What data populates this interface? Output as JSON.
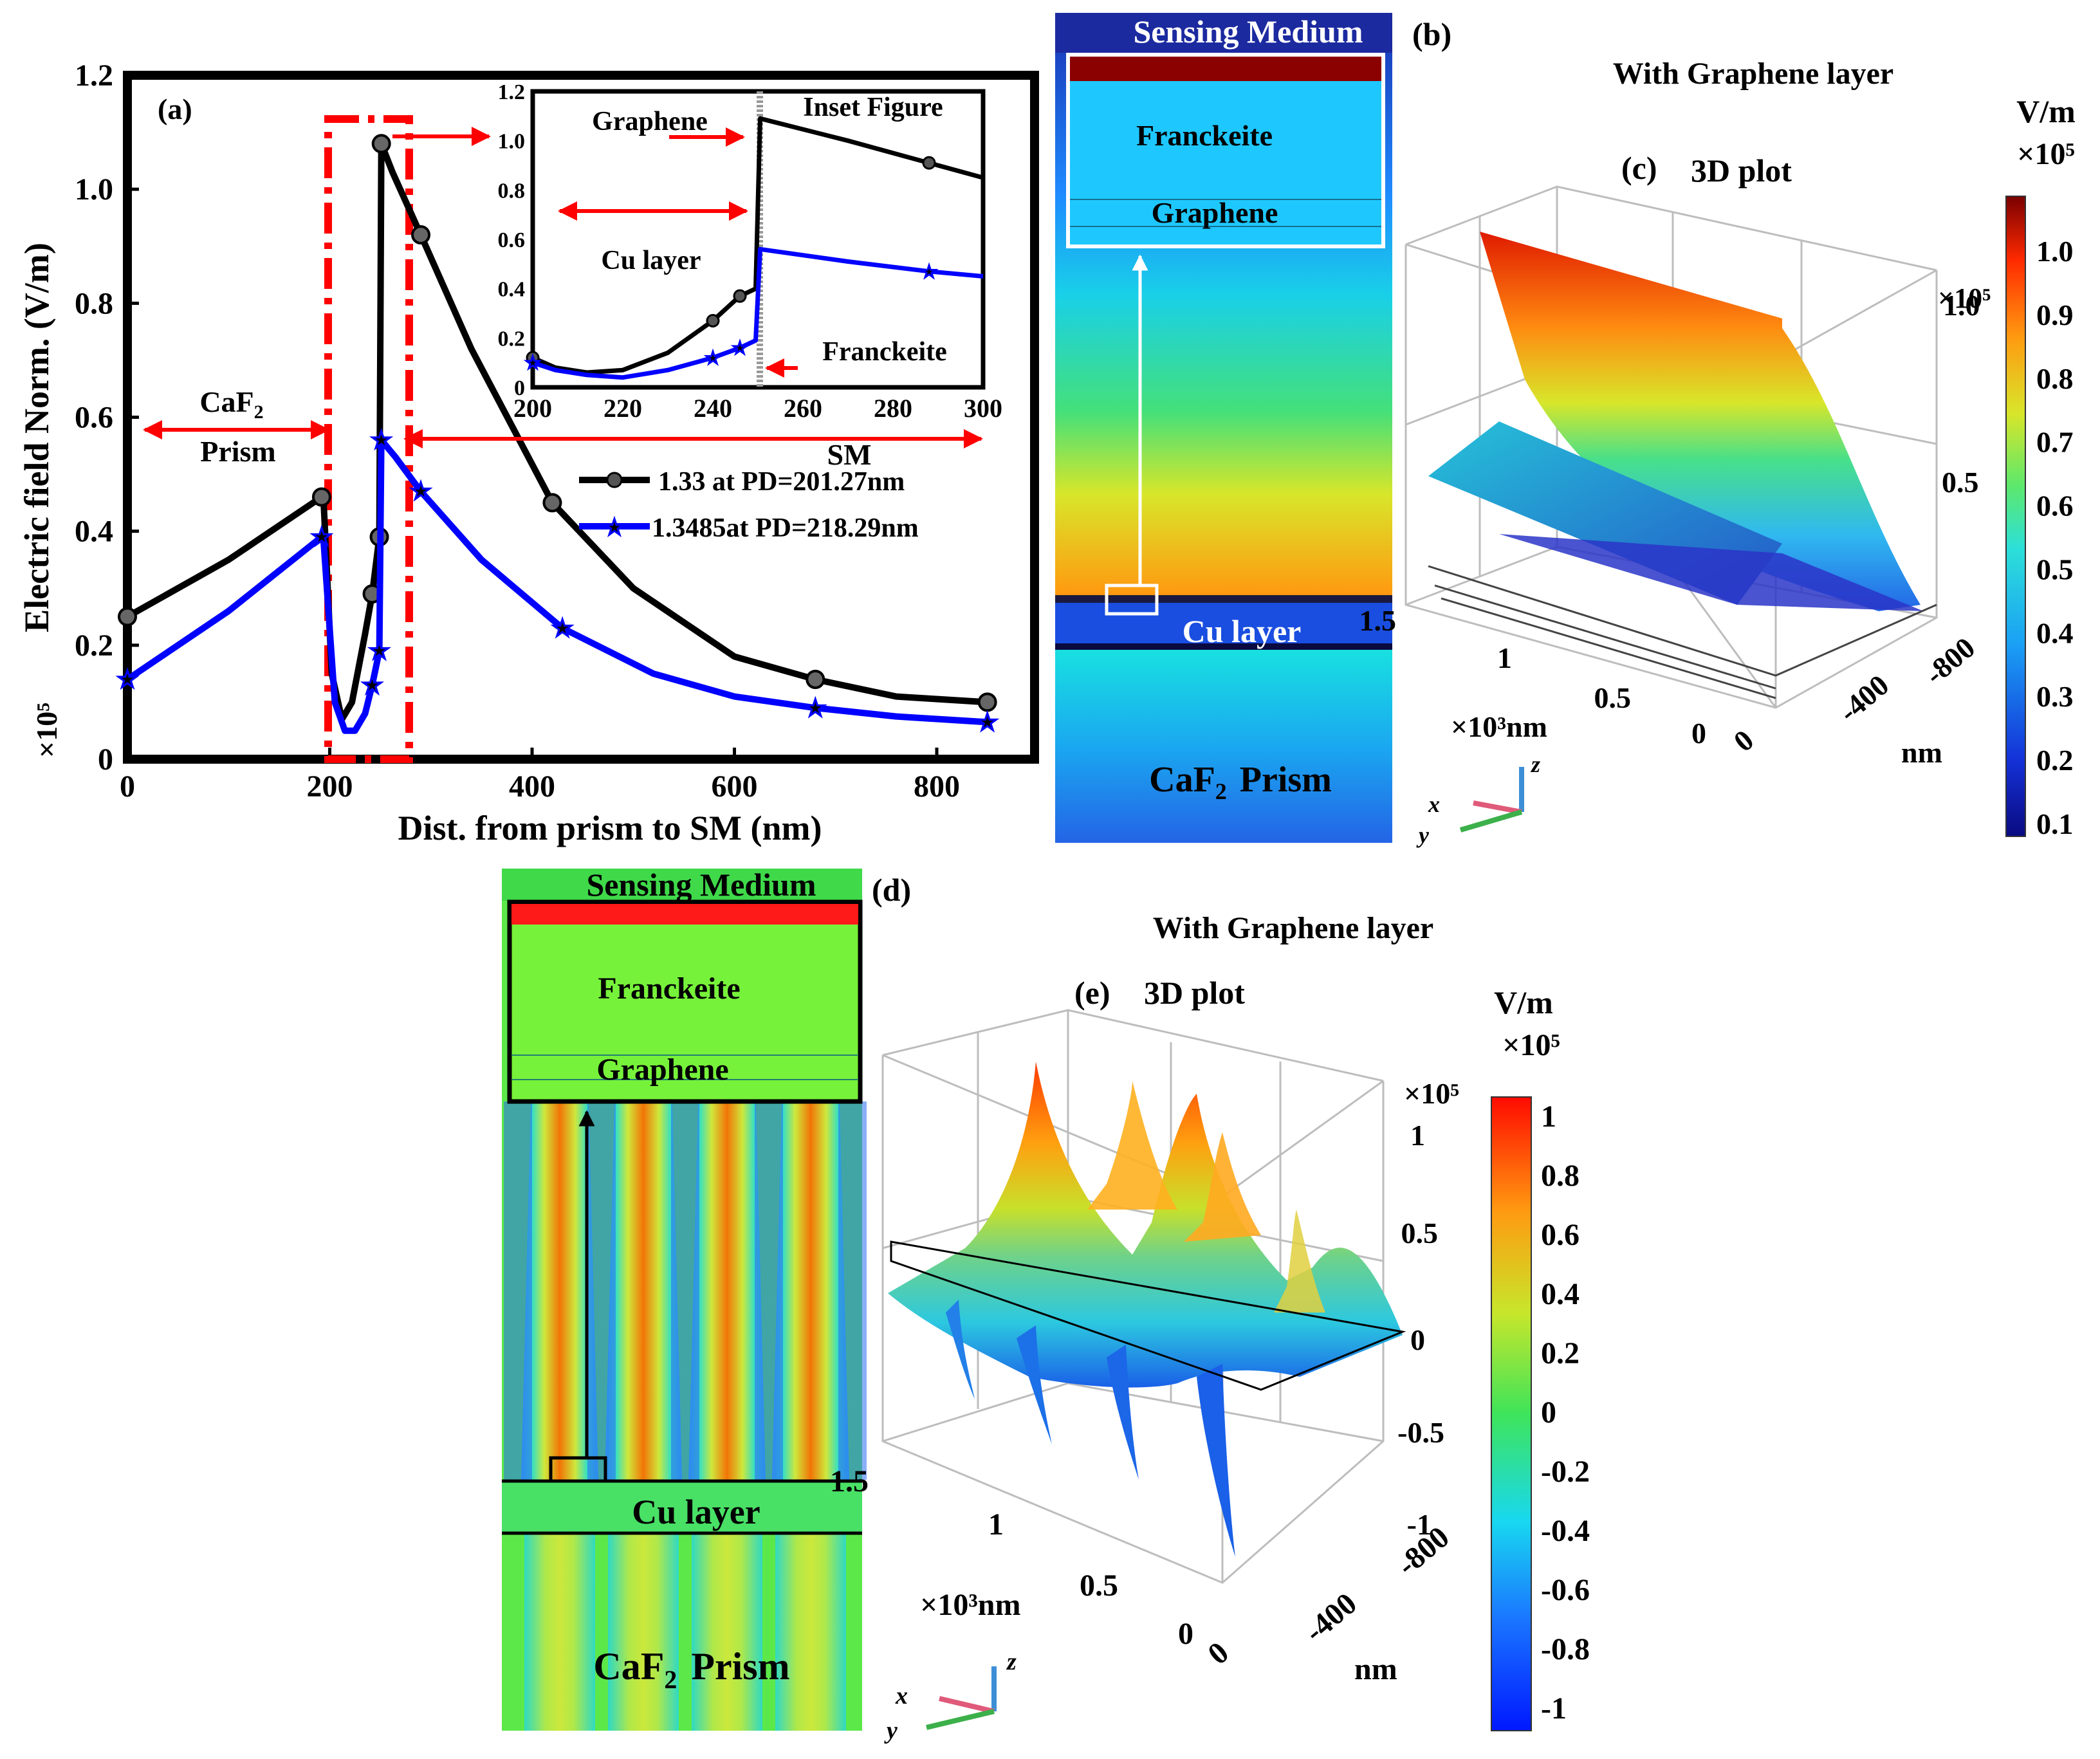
{
  "panel_a": {
    "label": "(a)",
    "chart_data": {
      "type": "line",
      "xlabel": "Dist. from prism to SM (nm)",
      "ylabel": "Electric field Norm. (V/m)",
      "yscale_label": "×10⁵",
      "xlim": [
        0,
        870
      ],
      "ylim": [
        0,
        1.2
      ],
      "xticks": [
        "0",
        "200",
        "400",
        "600",
        "800"
      ],
      "yticks": [
        "0",
        "0.2",
        "0.4",
        "0.6",
        "0.8",
        "1.0",
        "1.2"
      ],
      "series": [
        {
          "name": "1.33 at PD=201.27nm",
          "color": "#000000",
          "x": [
            0,
            100,
            192,
            194,
            202,
            212,
            222,
            235,
            242,
            249,
            251,
            262,
            290,
            340,
            420,
            500,
            600,
            680,
            760,
            850
          ],
          "y": [
            0.25,
            0.35,
            0.46,
            0.45,
            0.15,
            0.07,
            0.1,
            0.22,
            0.29,
            0.39,
            1.08,
            1.03,
            0.92,
            0.72,
            0.45,
            0.3,
            0.18,
            0.14,
            0.11,
            0.1
          ]
        },
        {
          "name": "1.3485at PD=218.29nm",
          "color": "#0000ff",
          "x": [
            0,
            100,
            192,
            194,
            205,
            215,
            225,
            235,
            242,
            249,
            251,
            265,
            290,
            350,
            430,
            520,
            600,
            680,
            760,
            850
          ],
          "y": [
            0.14,
            0.26,
            0.39,
            0.38,
            0.1,
            0.05,
            0.05,
            0.08,
            0.13,
            0.19,
            0.56,
            0.53,
            0.47,
            0.35,
            0.23,
            0.15,
            0.11,
            0.09,
            0.075,
            0.065
          ]
        }
      ],
      "annotations": {
        "caf2": "CaF",
        "caf2_sub": "2",
        "prism": "Prism",
        "sm": "SM"
      }
    },
    "inset": {
      "title": "Inset Figure",
      "xlim": [
        200,
        300
      ],
      "ylim": [
        0,
        1.2
      ],
      "xticks": [
        "200",
        "220",
        "240",
        "260",
        "280",
        "300"
      ],
      "yticks": [
        "0",
        "0.2",
        "0.4",
        "0.6",
        "0.8",
        "1.0",
        "1.2"
      ],
      "labels": {
        "graphene": "Graphene",
        "cu": "Cu layer",
        "franckeite": "Franckeite"
      },
      "series_black": {
        "x": [
          200,
          205,
          212,
          220,
          230,
          240,
          246,
          249.5,
          250.5,
          270,
          288,
          300
        ],
        "y": [
          0.12,
          0.08,
          0.06,
          0.07,
          0.14,
          0.27,
          0.37,
          0.4,
          1.09,
          1.0,
          0.91,
          0.85
        ]
      },
      "series_blue": {
        "x": [
          200,
          205,
          212,
          220,
          230,
          240,
          246,
          249.5,
          250.5,
          270,
          288,
          300
        ],
        "y": [
          0.1,
          0.07,
          0.05,
          0.04,
          0.07,
          0.12,
          0.16,
          0.19,
          0.56,
          0.51,
          0.47,
          0.45
        ]
      }
    }
  },
  "panel_b": {
    "label": "(b)",
    "sensing_medium": "Sensing Medium",
    "franckeite": "Franckeite",
    "graphene": "Graphene",
    "cu_layer": "Cu layer",
    "caf2": "CaF",
    "caf2_sub": "2",
    "prism": "Prism"
  },
  "panel_c": {
    "header": "With Graphene layer",
    "label": "(c)",
    "title": "3D plot",
    "unit": "V/m",
    "scale": "×10⁵",
    "z_scale": "×10⁵",
    "colorbar_ticks": [
      "1.0",
      "0.9",
      "0.8",
      "0.7",
      "0.6",
      "0.5",
      "0.4",
      "0.3",
      "0.2",
      "0.1"
    ],
    "z_ticks": [
      "1.0",
      "0.5"
    ],
    "x_ticks": [
      "1.5",
      "1",
      "0.5",
      "0"
    ],
    "x_unit": "×10³nm",
    "y_ticks": [
      "0",
      "-400",
      "-800"
    ],
    "y_unit": "nm",
    "axes": {
      "x": "x",
      "y": "y",
      "z": "z"
    }
  },
  "panel_d": {
    "label": "(d)",
    "sensing_medium": "Sensing Medium",
    "franckeite": "Franckeite",
    "graphene": "Graphene",
    "cu_layer": "Cu layer",
    "caf2": "CaF",
    "caf2_sub": "2",
    "prism": "Prism"
  },
  "panel_e": {
    "header": "With Graphene layer",
    "label": "(e)",
    "title": "3D plot",
    "unit": "V/m",
    "scale": "×10⁵",
    "z_scale": "×10⁵",
    "colorbar_ticks": [
      "1",
      "0.8",
      "0.6",
      "0.4",
      "0.2",
      "0",
      "-0.2",
      "-0.4",
      "-0.6",
      "-0.8",
      "-1"
    ],
    "z_ticks": [
      "1",
      "0.5",
      "0",
      "-0.5",
      "-1"
    ],
    "x_ticks": [
      "1.5",
      "1",
      "0.5",
      "0"
    ],
    "x_unit": "×10³nm",
    "y_ticks": [
      "0",
      "-400",
      "-800"
    ],
    "y_unit": "nm",
    "axes": {
      "x": "x",
      "y": "y",
      "z": "z"
    }
  },
  "colors": {
    "frame": "#000000",
    "arrow_red": "#ff0000",
    "series_black": "#000000",
    "series_blue": "#0000ff"
  }
}
